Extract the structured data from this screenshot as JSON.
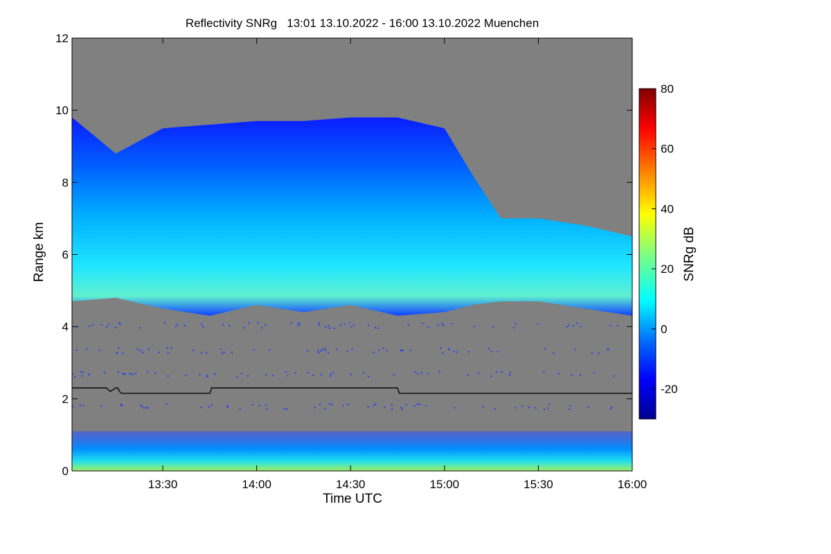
{
  "chart_data": {
    "type": "heatmap",
    "title": "Reflectivity SNRg   13:01 13.10.2022 - 16:00 13.10.2022 Muenchen",
    "xlabel": "Time UTC",
    "ylabel": "Range km",
    "colorbar_label": "SNRg dB",
    "xlim": [
      13.0167,
      16.0
    ],
    "ylim": [
      0,
      12
    ],
    "x_ticks": [
      13.5,
      14.0,
      14.5,
      15.0,
      15.5,
      16.0
    ],
    "x_tick_labels": [
      "13:30",
      "14:00",
      "14:30",
      "15:00",
      "15:30",
      "16:00"
    ],
    "y_ticks": [
      0,
      2,
      4,
      6,
      8,
      10,
      12
    ],
    "y_tick_labels": [
      "0",
      "2",
      "4",
      "6",
      "8",
      "10",
      "12"
    ],
    "colorbar_range": [
      -30,
      80
    ],
    "colorbar_ticks": [
      -20,
      0,
      20,
      40,
      60,
      80
    ],
    "colorbar_tick_labels": [
      "-20",
      "0",
      "20",
      "40",
      "60",
      "80"
    ],
    "background_color": "#808080",
    "cloud_layer": {
      "time": [
        13.0167,
        13.25,
        13.5,
        13.75,
        14.0,
        14.25,
        14.5,
        14.75,
        15.0,
        15.15,
        15.3,
        15.5,
        15.75,
        16.0
      ],
      "top_km": [
        9.8,
        8.8,
        9.5,
        9.6,
        9.7,
        9.7,
        9.8,
        9.8,
        9.5,
        8.2,
        7.0,
        7.0,
        6.8,
        6.5
      ],
      "base_km": [
        4.7,
        4.8,
        4.5,
        4.3,
        4.6,
        4.4,
        4.6,
        4.3,
        4.4,
        4.6,
        4.7,
        4.7,
        4.5,
        4.3
      ],
      "core_snr_db": 15
    },
    "detected_layer_line": {
      "color": "#000000",
      "time": [
        13.0167,
        13.2,
        13.22,
        13.25,
        13.26,
        13.27,
        13.28,
        13.75,
        13.76,
        14.75,
        14.76,
        16.0
      ],
      "range_km": [
        2.3,
        2.3,
        2.2,
        2.3,
        2.3,
        2.2,
        2.15,
        2.15,
        2.3,
        2.3,
        2.15,
        2.15
      ]
    },
    "surface_clutter": {
      "height_km": 1.1,
      "surface_snr_db": 25
    }
  }
}
